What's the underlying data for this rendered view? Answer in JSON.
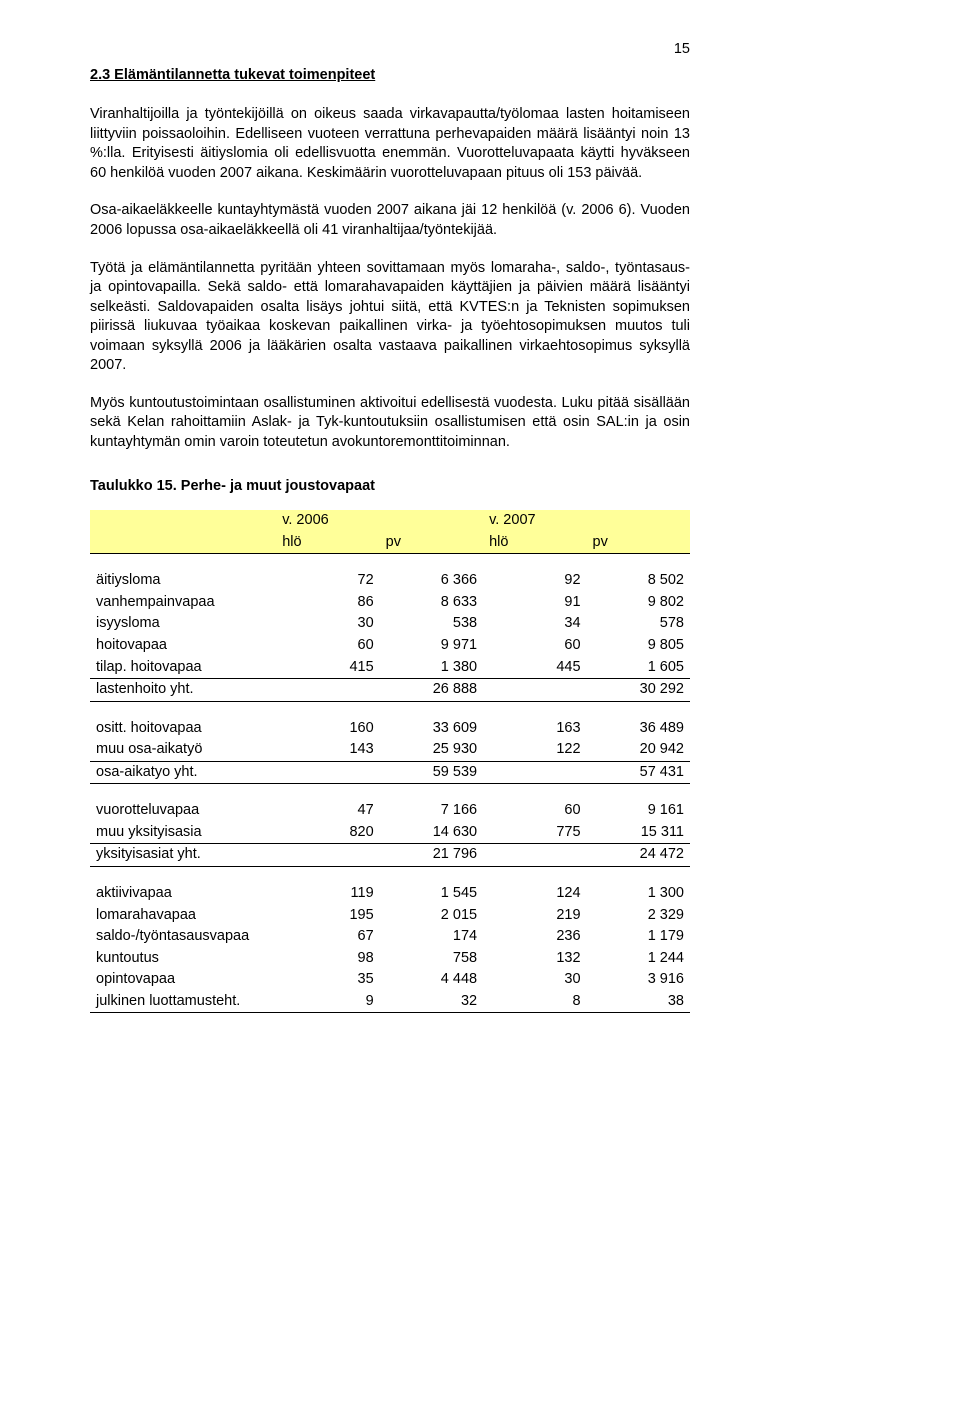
{
  "page_number": "15",
  "heading": "2.3 Elämäntilannetta tukevat toimenpiteet",
  "paragraphs": {
    "p1": "Viranhaltijoilla ja työntekijöillä on oikeus saada virkavapautta/työlomaa lasten hoitamiseen liittyviin poissaoloihin. Edelliseen vuoteen verrattuna perhevapaiden määrä lisääntyi noin 13 %:lla. Erityisesti äitiyslomia oli edellisvuotta enemmän. Vuorotteluvapaata käytti hyväkseen 60 henkilöä vuoden 2007 aikana. Keskimäärin vuorotteluvapaan pituus oli 153 päivää.",
    "p2": "Osa-aikaeläkkeelle kuntayhtymästä vuoden 2007 aikana jäi 12 henkilöä (v. 2006 6). Vuoden 2006 lopussa osa-aikaeläkkeellä oli 41 viranhaltijaa/työntekijää.",
    "p3": "Työtä ja elämäntilannetta pyritään yhteen sovittamaan myös lomaraha-, saldo-, työntasaus- ja opintovapailla. Sekä saldo- että lomarahavapaiden käyttäjien ja päivien määrä lisääntyi selkeästi. Saldovapaiden osalta lisäys johtui siitä, että KVTES:n ja Teknisten sopimuksen piirissä liukuvaa työaikaa koskevan paikallinen virka- ja työehtosopimuksen muutos tuli voimaan syksyllä 2006 ja lääkärien osalta vastaava paikallinen virkaehtosopimus syksyllä 2007.",
    "p4": "Myös kuntoutustoimintaan osallistuminen aktivoitui edellisestä vuodesta. Luku pitää sisällään sekä Kelan rahoittamiin Aslak- ja Tyk-kuntoutuksiin osallistumisen että osin SAL:in ja osin kuntayhtymän omin varoin toteutetun avokuntoremonttitoiminnan."
  },
  "table_caption": "Taulukko 15. Perhe- ja muut joustovapaat",
  "table": {
    "header_bg": "#ffff99",
    "years": {
      "y1": "v. 2006",
      "y2": "v. 2007"
    },
    "cols": {
      "hlo": "hlö",
      "pv": "pv"
    },
    "groups": [
      {
        "rows": [
          {
            "label": "äitiysloma",
            "h1": "72",
            "p1": "6 366",
            "h2": "92",
            "p2": "8 502"
          },
          {
            "label": "vanhempainvapaa",
            "h1": "86",
            "p1": "8 633",
            "h2": "91",
            "p2": "9 802"
          },
          {
            "label": "isyysloma",
            "h1": "30",
            "p1": "538",
            "h2": "34",
            "p2": "578"
          },
          {
            "label": "hoitovapaa",
            "h1": "60",
            "p1": "9 971",
            "h2": "60",
            "p2": "9 805"
          },
          {
            "label": "tilap. hoitovapaa",
            "h1": "415",
            "p1": "1 380",
            "h2": "445",
            "p2": "1 605"
          }
        ],
        "subtotal": {
          "label": "lastenhoito yht.",
          "p1": "26 888",
          "p2": "30 292"
        }
      },
      {
        "rows": [
          {
            "label": "ositt. hoitovapaa",
            "h1": "160",
            "p1": "33 609",
            "h2": "163",
            "p2": "36 489"
          },
          {
            "label": "muu osa-aikatyö",
            "h1": "143",
            "p1": "25 930",
            "h2": "122",
            "p2": "20 942"
          }
        ],
        "subtotal": {
          "label": "osa-aikatyo yht.",
          "p1": "59 539",
          "p2": "57 431"
        }
      },
      {
        "rows": [
          {
            "label": "vuorotteluvapaa",
            "h1": "47",
            "p1": "7 166",
            "h2": "60",
            "p2": "9 161"
          },
          {
            "label": "muu yksityisasia",
            "h1": "820",
            "p1": "14 630",
            "h2": "775",
            "p2": "15 311"
          }
        ],
        "subtotal": {
          "label": "yksityisasiat yht.",
          "p1": "21 796",
          "p2": "24 472"
        }
      },
      {
        "rows": [
          {
            "label": "aktiivivapaa",
            "h1": "119",
            "p1": "1 545",
            "h2": "124",
            "p2": "1 300"
          },
          {
            "label": "lomarahavapaa",
            "h1": "195",
            "p1": "2 015",
            "h2": "219",
            "p2": "2 329"
          },
          {
            "label": "saldo-/työntasausvapaa",
            "h1": "67",
            "p1": "174",
            "h2": "236",
            "p2": "1 179"
          },
          {
            "label": "kuntoutus",
            "h1": "98",
            "p1": "758",
            "h2": "132",
            "p2": "1 244"
          },
          {
            "label": "opintovapaa",
            "h1": "35",
            "p1": "4 448",
            "h2": "30",
            "p2": "3 916"
          },
          {
            "label": "julkinen luottamusteht.",
            "h1": "9",
            "p1": "32",
            "h2": "8",
            "p2": "38"
          }
        ]
      }
    ]
  }
}
